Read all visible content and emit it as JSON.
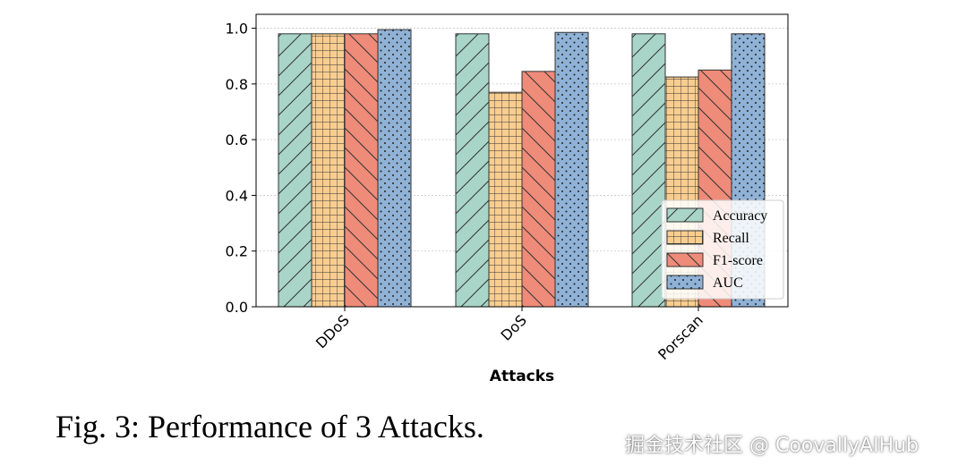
{
  "chart_data": {
    "type": "bar",
    "categories": [
      "DDoS",
      "DoS",
      "Porscan"
    ],
    "series": [
      {
        "name": "Accuracy",
        "values": [
          0.98,
          0.98,
          0.98
        ],
        "color": "#a8d5c8",
        "hatch": "diagonal"
      },
      {
        "name": "Recall",
        "values": [
          0.98,
          0.77,
          0.825
        ],
        "color": "#f9cd8f",
        "hatch": "grid"
      },
      {
        "name": "F1-score",
        "values": [
          0.98,
          0.845,
          0.85
        ],
        "color": "#ef8b79",
        "hatch": "backslash"
      },
      {
        "name": "AUC",
        "values": [
          0.995,
          0.985,
          0.98
        ],
        "color": "#8fb2d6",
        "hatch": "dots"
      }
    ],
    "xlabel": "Attacks",
    "ylabel": "",
    "ylim": [
      0,
      1.05
    ],
    "yticks": [
      "0.0",
      "0.2",
      "0.4",
      "0.6",
      "0.8",
      "1.0"
    ],
    "grid": true,
    "legend": "lower-right"
  },
  "caption": "Fig. 3: Performance of 3 Attacks.",
  "watermark": "掘金技术社区 @ CoovallyAIHub"
}
